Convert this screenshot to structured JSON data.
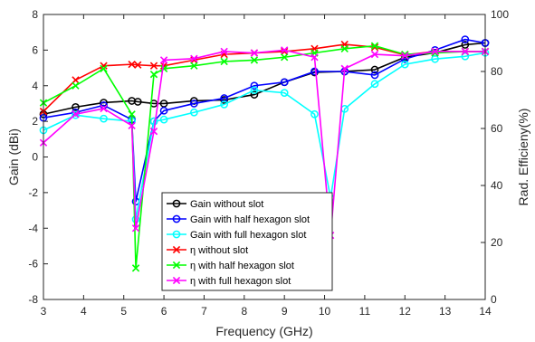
{
  "chart_data": {
    "type": "line",
    "xlabel": "Frequency (GHz)",
    "ylabel_left": "Gain (dBi)",
    "ylabel_right": "Rad. Efficieny(%)",
    "xlim": [
      3,
      14
    ],
    "ylim_left": [
      -8,
      8
    ],
    "ylim_right": [
      0,
      100
    ],
    "x_ticks": [
      3,
      4,
      5,
      6,
      7,
      8,
      9,
      10,
      11,
      12,
      13,
      14
    ],
    "y_ticks_left": [
      -8,
      -6,
      -4,
      -2,
      0,
      2,
      4,
      6,
      8
    ],
    "y_ticks_right": [
      0,
      20,
      40,
      60,
      80,
      100
    ],
    "grid": false,
    "legend_position": "lower-center",
    "series": [
      {
        "name": "Gain without slot",
        "axis": "left",
        "color": "#000000",
        "marker": "circle",
        "points": [
          [
            3.0,
            2.4
          ],
          [
            3.8,
            2.8
          ],
          [
            4.5,
            3.05
          ],
          [
            5.2,
            3.15
          ],
          [
            5.35,
            3.1
          ],
          [
            5.75,
            3.0
          ],
          [
            6.0,
            3.0
          ],
          [
            6.75,
            3.15
          ],
          [
            7.5,
            3.2
          ],
          [
            8.25,
            3.5
          ],
          [
            9.0,
            4.2
          ],
          [
            9.75,
            4.75
          ],
          [
            10.5,
            4.8
          ],
          [
            11.25,
            4.9
          ],
          [
            12.0,
            5.6
          ],
          [
            12.75,
            5.85
          ],
          [
            13.5,
            6.3
          ],
          [
            14.0,
            6.4
          ]
        ]
      },
      {
        "name": "Gain with half hexagon slot",
        "axis": "left",
        "color": "#0000ff",
        "marker": "circle",
        "points": [
          [
            3.0,
            2.2
          ],
          [
            3.8,
            2.5
          ],
          [
            4.5,
            2.9
          ],
          [
            5.2,
            2.1
          ],
          [
            5.3,
            -2.5
          ],
          [
            5.75,
            2.0
          ],
          [
            6.0,
            2.6
          ],
          [
            6.75,
            3.0
          ],
          [
            7.5,
            3.3
          ],
          [
            8.25,
            4.0
          ],
          [
            9.0,
            4.2
          ],
          [
            9.75,
            4.8
          ],
          [
            10.5,
            4.8
          ],
          [
            11.25,
            4.6
          ],
          [
            12.0,
            5.5
          ],
          [
            12.75,
            6.0
          ],
          [
            13.5,
            6.6
          ],
          [
            14.0,
            6.4
          ]
        ]
      },
      {
        "name": "Gain with full hexagon slot",
        "axis": "left",
        "color": "#00ffff",
        "marker": "circle",
        "points": [
          [
            3.0,
            1.5
          ],
          [
            3.8,
            2.35
          ],
          [
            4.5,
            2.15
          ],
          [
            5.2,
            2.0
          ],
          [
            5.3,
            -3.5
          ],
          [
            5.75,
            2.0
          ],
          [
            6.0,
            2.1
          ],
          [
            6.75,
            2.5
          ],
          [
            7.5,
            2.95
          ],
          [
            8.25,
            3.75
          ],
          [
            9.0,
            3.6
          ],
          [
            9.75,
            2.4
          ],
          [
            10.15,
            -2.3
          ],
          [
            10.5,
            2.7
          ],
          [
            11.25,
            4.1
          ],
          [
            12.0,
            5.2
          ],
          [
            12.75,
            5.5
          ],
          [
            13.5,
            5.65
          ],
          [
            14.0,
            5.85
          ]
        ]
      },
      {
        "name": "η without slot",
        "axis": "right",
        "color": "#ff0000",
        "marker": "x",
        "points": [
          [
            3.0,
            66
          ],
          [
            3.8,
            77
          ],
          [
            4.5,
            82
          ],
          [
            5.2,
            82.5
          ],
          [
            5.35,
            82.3
          ],
          [
            5.75,
            82
          ],
          [
            6.0,
            82
          ],
          [
            6.75,
            84
          ],
          [
            7.5,
            86
          ],
          [
            8.25,
            86.5
          ],
          [
            9.0,
            87
          ],
          [
            9.75,
            88
          ],
          [
            10.5,
            89.5
          ],
          [
            11.25,
            88.5
          ],
          [
            12.0,
            85.8
          ],
          [
            12.75,
            87
          ],
          [
            13.5,
            87
          ],
          [
            14.0,
            87
          ]
        ]
      },
      {
        "name": "η with half hexagon slot",
        "axis": "right",
        "color": "#00ff00",
        "marker": "x",
        "points": [
          [
            3.0,
            69
          ],
          [
            3.8,
            75
          ],
          [
            4.5,
            81
          ],
          [
            5.2,
            65
          ],
          [
            5.3,
            11
          ],
          [
            5.75,
            79
          ],
          [
            6.0,
            81
          ],
          [
            6.75,
            82
          ],
          [
            7.5,
            83.5
          ],
          [
            8.25,
            84
          ],
          [
            9.0,
            85
          ],
          [
            9.75,
            86.5
          ],
          [
            10.5,
            88
          ],
          [
            11.25,
            89
          ],
          [
            12.0,
            86
          ],
          [
            12.75,
            86.5
          ],
          [
            13.5,
            87
          ],
          [
            14.0,
            87
          ]
        ]
      },
      {
        "name": "η with full hexagon slot",
        "axis": "right",
        "color": "#ff00ff",
        "marker": "x",
        "points": [
          [
            3.0,
            55
          ],
          [
            3.8,
            65
          ],
          [
            4.5,
            67
          ],
          [
            5.2,
            61
          ],
          [
            5.3,
            25
          ],
          [
            5.75,
            59
          ],
          [
            6.0,
            84
          ],
          [
            6.75,
            84.5
          ],
          [
            7.5,
            87
          ],
          [
            8.25,
            86.5
          ],
          [
            9.0,
            87.5
          ],
          [
            9.75,
            85
          ],
          [
            10.15,
            22.5
          ],
          [
            10.5,
            81
          ],
          [
            11.25,
            86
          ],
          [
            12.0,
            85.5
          ],
          [
            12.75,
            87
          ],
          [
            13.5,
            87
          ],
          [
            14.0,
            87
          ]
        ]
      }
    ]
  }
}
